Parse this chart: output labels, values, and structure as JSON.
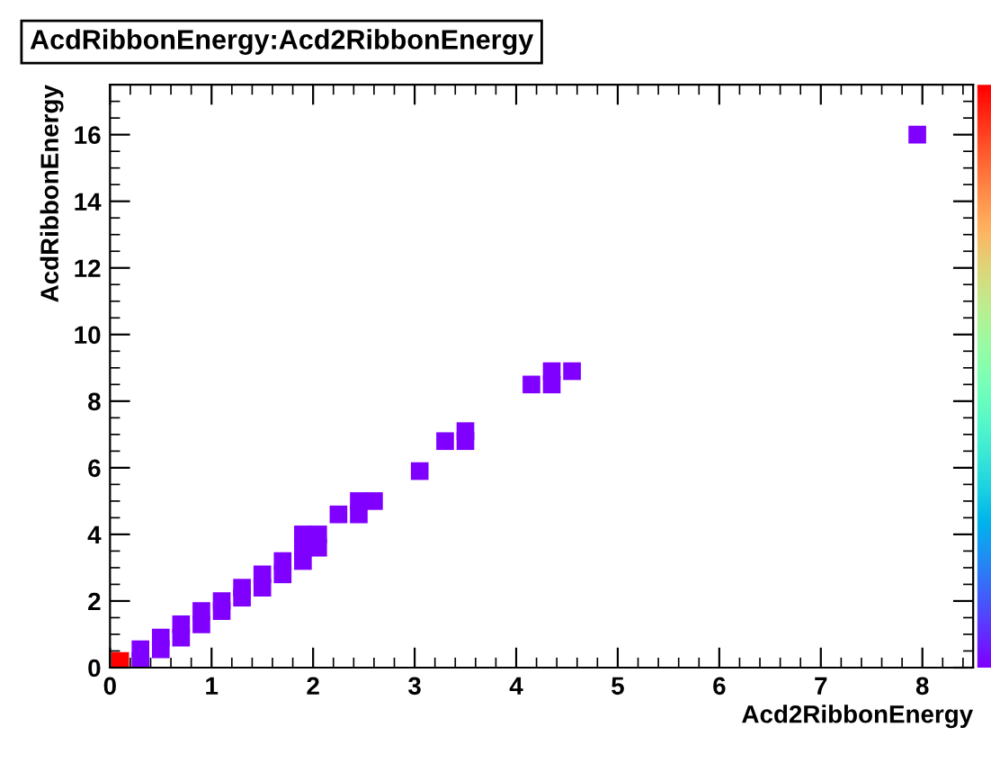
{
  "chart_data": {
    "type": "scatter",
    "title": "AcdRibbonEnergy:Acd2RibbonEnergy",
    "xlabel": "Acd2RibbonEnergy",
    "ylabel": "AcdRibbonEnergy",
    "x": [
      0.1,
      0.3,
      0.3,
      0.5,
      0.5,
      0.7,
      0.7,
      0.9,
      0.9,
      1.1,
      1.1,
      1.3,
      1.3,
      1.5,
      1.5,
      1.7,
      1.7,
      1.9,
      1.9,
      1.9,
      2.05,
      2.05,
      2.25,
      2.45,
      2.45,
      2.6,
      3.05,
      3.3,
      3.5,
      3.5,
      4.15,
      4.35,
      4.35,
      4.55,
      7.95
    ],
    "values": [
      0.2,
      0.2,
      0.55,
      0.55,
      0.9,
      0.9,
      1.3,
      1.3,
      1.7,
      1.7,
      2.0,
      2.1,
      2.4,
      2.4,
      2.8,
      2.8,
      3.2,
      3.2,
      3.6,
      4.0,
      3.6,
      4.0,
      4.6,
      4.6,
      5.0,
      5.0,
      5.9,
      6.8,
      6.8,
      7.1,
      8.5,
      8.5,
      8.9,
      8.9,
      16.0
    ],
    "colors": [
      "#ff0000",
      "#8000ff",
      "#8000ff",
      "#8000ff",
      "#8000ff",
      "#8000ff",
      "#8000ff",
      "#8000ff",
      "#8000ff",
      "#8000ff",
      "#8000ff",
      "#8000ff",
      "#8000ff",
      "#8000ff",
      "#8000ff",
      "#8000ff",
      "#8000ff",
      "#8000ff",
      "#8000ff",
      "#8000ff",
      "#8000ff",
      "#8000ff",
      "#8000ff",
      "#8000ff",
      "#8000ff",
      "#8000ff",
      "#8000ff",
      "#8000ff",
      "#8000ff",
      "#8000ff",
      "#8000ff",
      "#8000ff",
      "#8000ff",
      "#8000ff",
      "#8000ff"
    ],
    "marker": "square",
    "xlim": [
      0,
      8.5
    ],
    "xticks": [
      0,
      1,
      2,
      3,
      4,
      5,
      6,
      7,
      8
    ],
    "ylim": [
      0,
      17.5
    ],
    "yticks": [
      0,
      2,
      4,
      6,
      8,
      10,
      12,
      14,
      16
    ]
  }
}
